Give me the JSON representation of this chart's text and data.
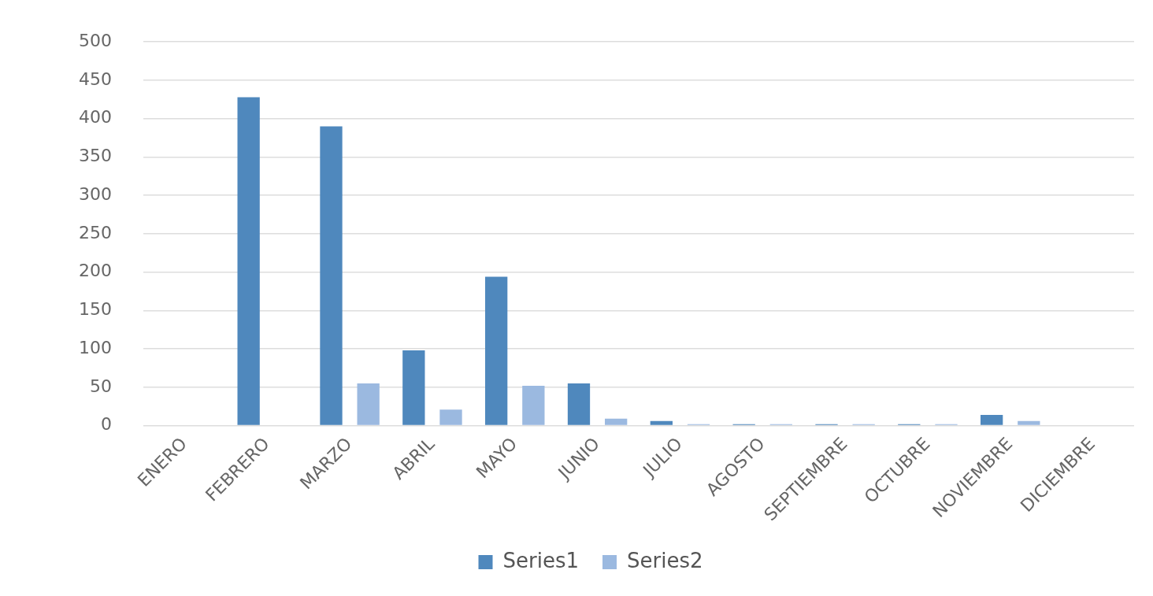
{
  "chart_data": {
    "type": "bar",
    "categories": [
      "ENERO",
      "FEBRERO",
      "MARZO",
      "ABRIL",
      "MAYO",
      "JUNIO",
      "JULIO",
      "AGOSTO",
      "SEPTIEMBRE",
      "OCTUBRE",
      "NOVIEMBRE",
      "DICIEMBRE"
    ],
    "series": [
      {
        "name": "Series1",
        "color": "#4f88bd",
        "values": [
          0,
          428,
          390,
          98,
          194,
          55,
          6,
          2,
          2,
          2,
          14,
          0
        ]
      },
      {
        "name": "Series2",
        "color": "#9bb9e0",
        "values": [
          0,
          0,
          55,
          21,
          52,
          9,
          2,
          2,
          2,
          2,
          6,
          0
        ]
      }
    ],
    "ylim": [
      0,
      500
    ],
    "yticks": [
      0,
      50,
      100,
      150,
      200,
      250,
      300,
      350,
      400,
      450,
      500
    ],
    "grid": "y",
    "legend": "bottom"
  }
}
